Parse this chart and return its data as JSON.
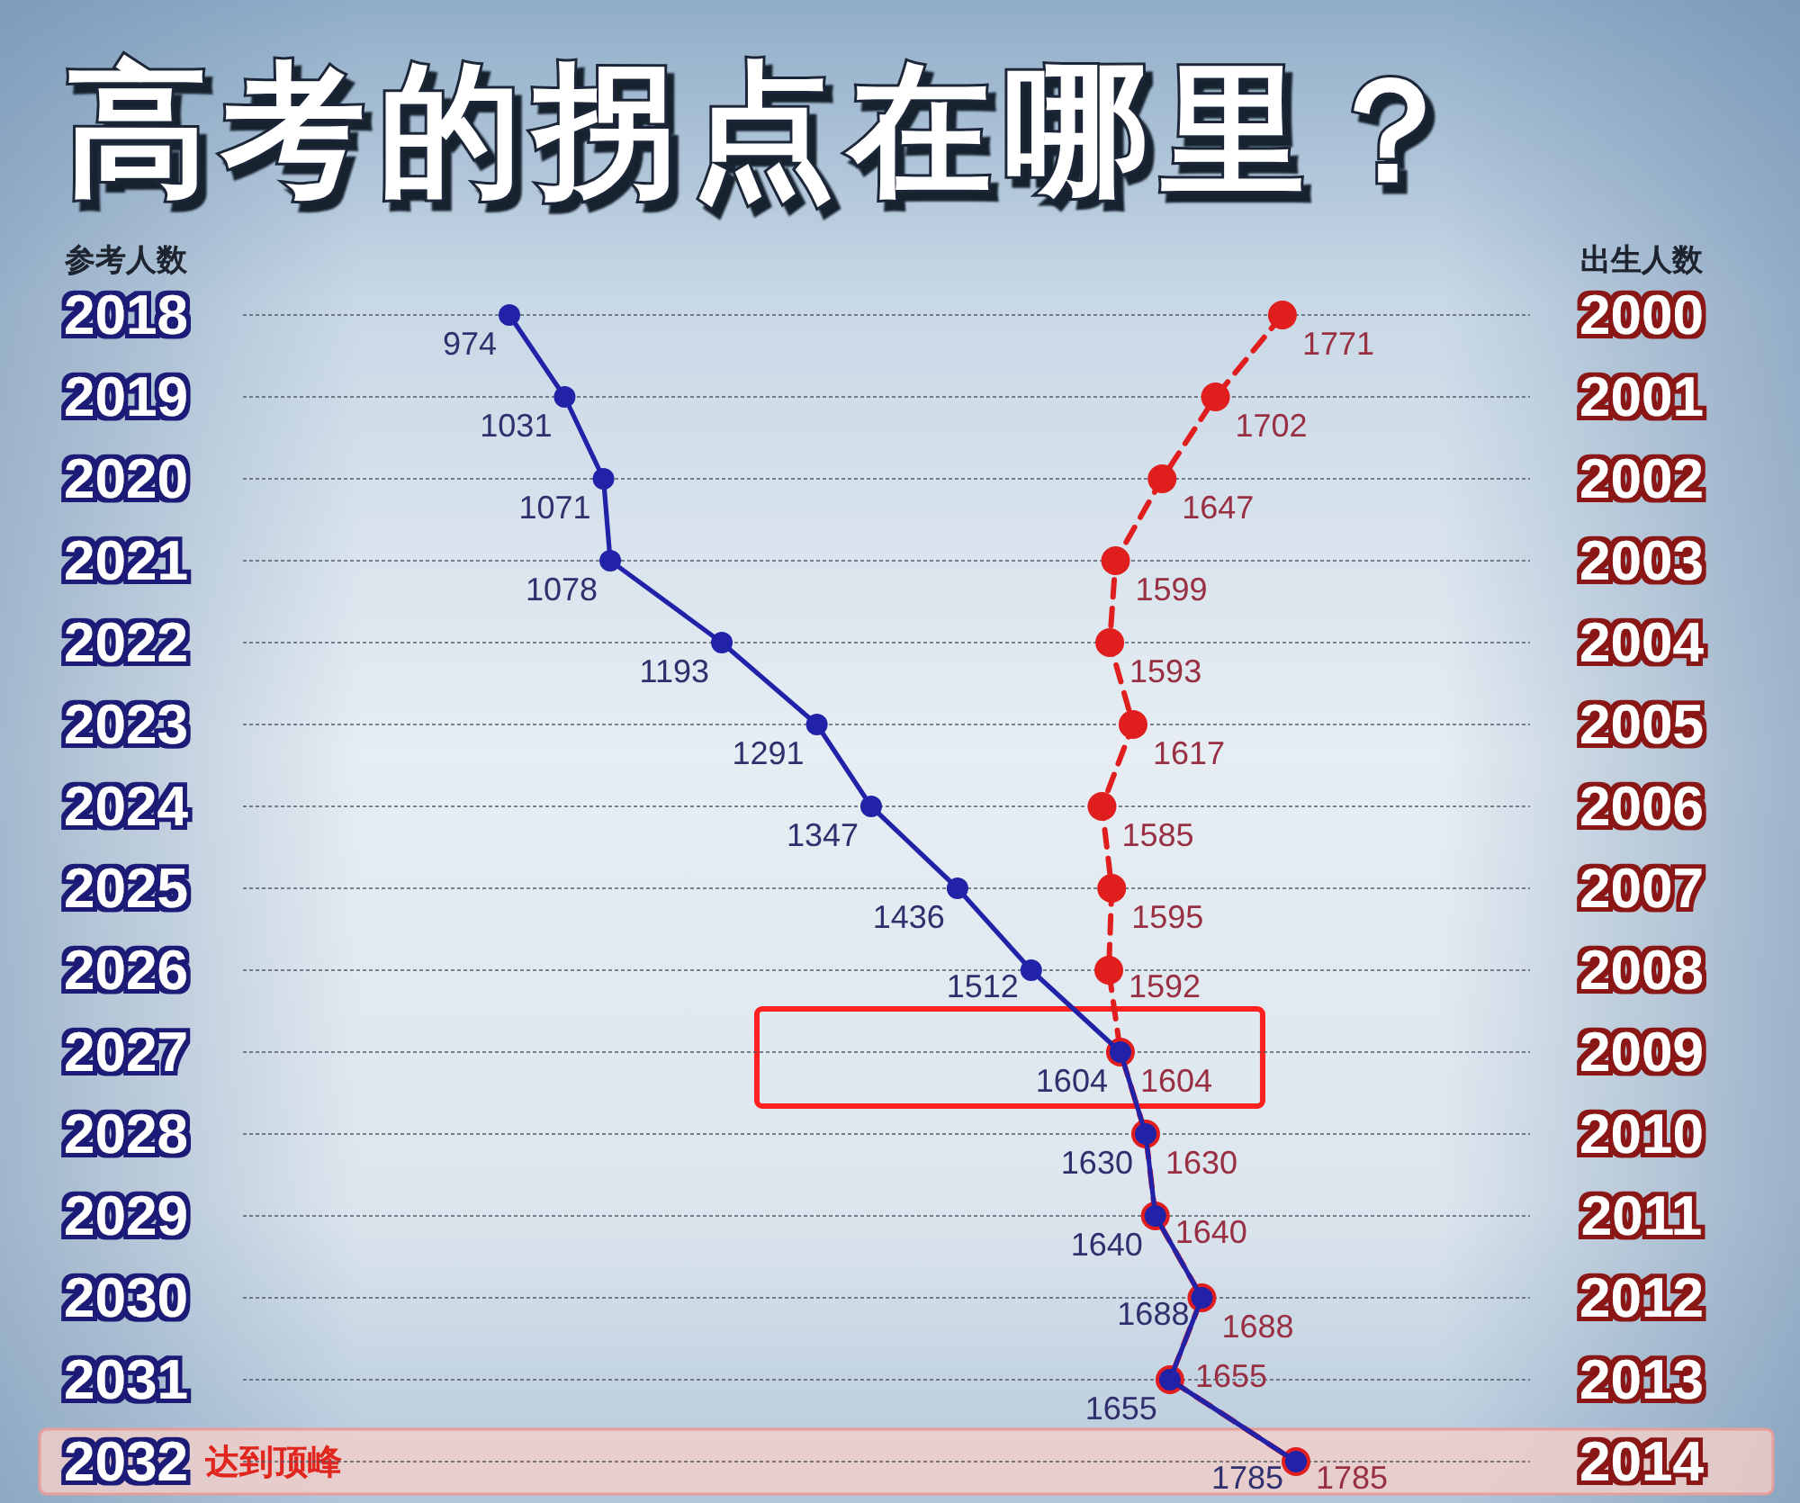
{
  "chart_data": {
    "type": "line",
    "orientation": "horizontal",
    "title": "高考的拐点在哪里？",
    "ylabel": "参考人数",
    "annotations": [
      "出生人数"
    ],
    "categories": [
      "2018",
      "2019",
      "2020",
      "2021",
      "2022",
      "2023",
      "2024",
      "2025",
      "2026",
      "2027",
      "2028",
      "2029",
      "2030",
      "2031",
      "2032"
    ],
    "y2_categories": [
      "2000",
      "2001",
      "2002",
      "2003",
      "2004",
      "2005",
      "2006",
      "2007",
      "2008",
      "2009",
      "2010",
      "2011",
      "2012",
      "2013",
      "2014"
    ],
    "series": [
      {
        "color": "#2222a8",
        "line_style": "solid",
        "values": [
          974,
          1031,
          1071,
          1078,
          1193,
          1291,
          1347,
          1436,
          1512,
          1604,
          1630,
          1640,
          1688,
          1655,
          1785
        ]
      },
      {
        "color": "#e01e1e",
        "line_style": "dashed",
        "axis": "y2",
        "values": [
          1771,
          1702,
          1647,
          1599,
          1593,
          1617,
          1585,
          1595,
          1592,
          1604,
          1630,
          1640,
          1688,
          1655,
          1785
        ]
      }
    ],
    "marker": "circle",
    "data_labels": true,
    "grid": "y",
    "bands": [
      {
        "axis": "y",
        "from": "2032",
        "to": "2032",
        "label": "达到顶峰",
        "color": "#f4cfc9"
      }
    ]
  }
}
